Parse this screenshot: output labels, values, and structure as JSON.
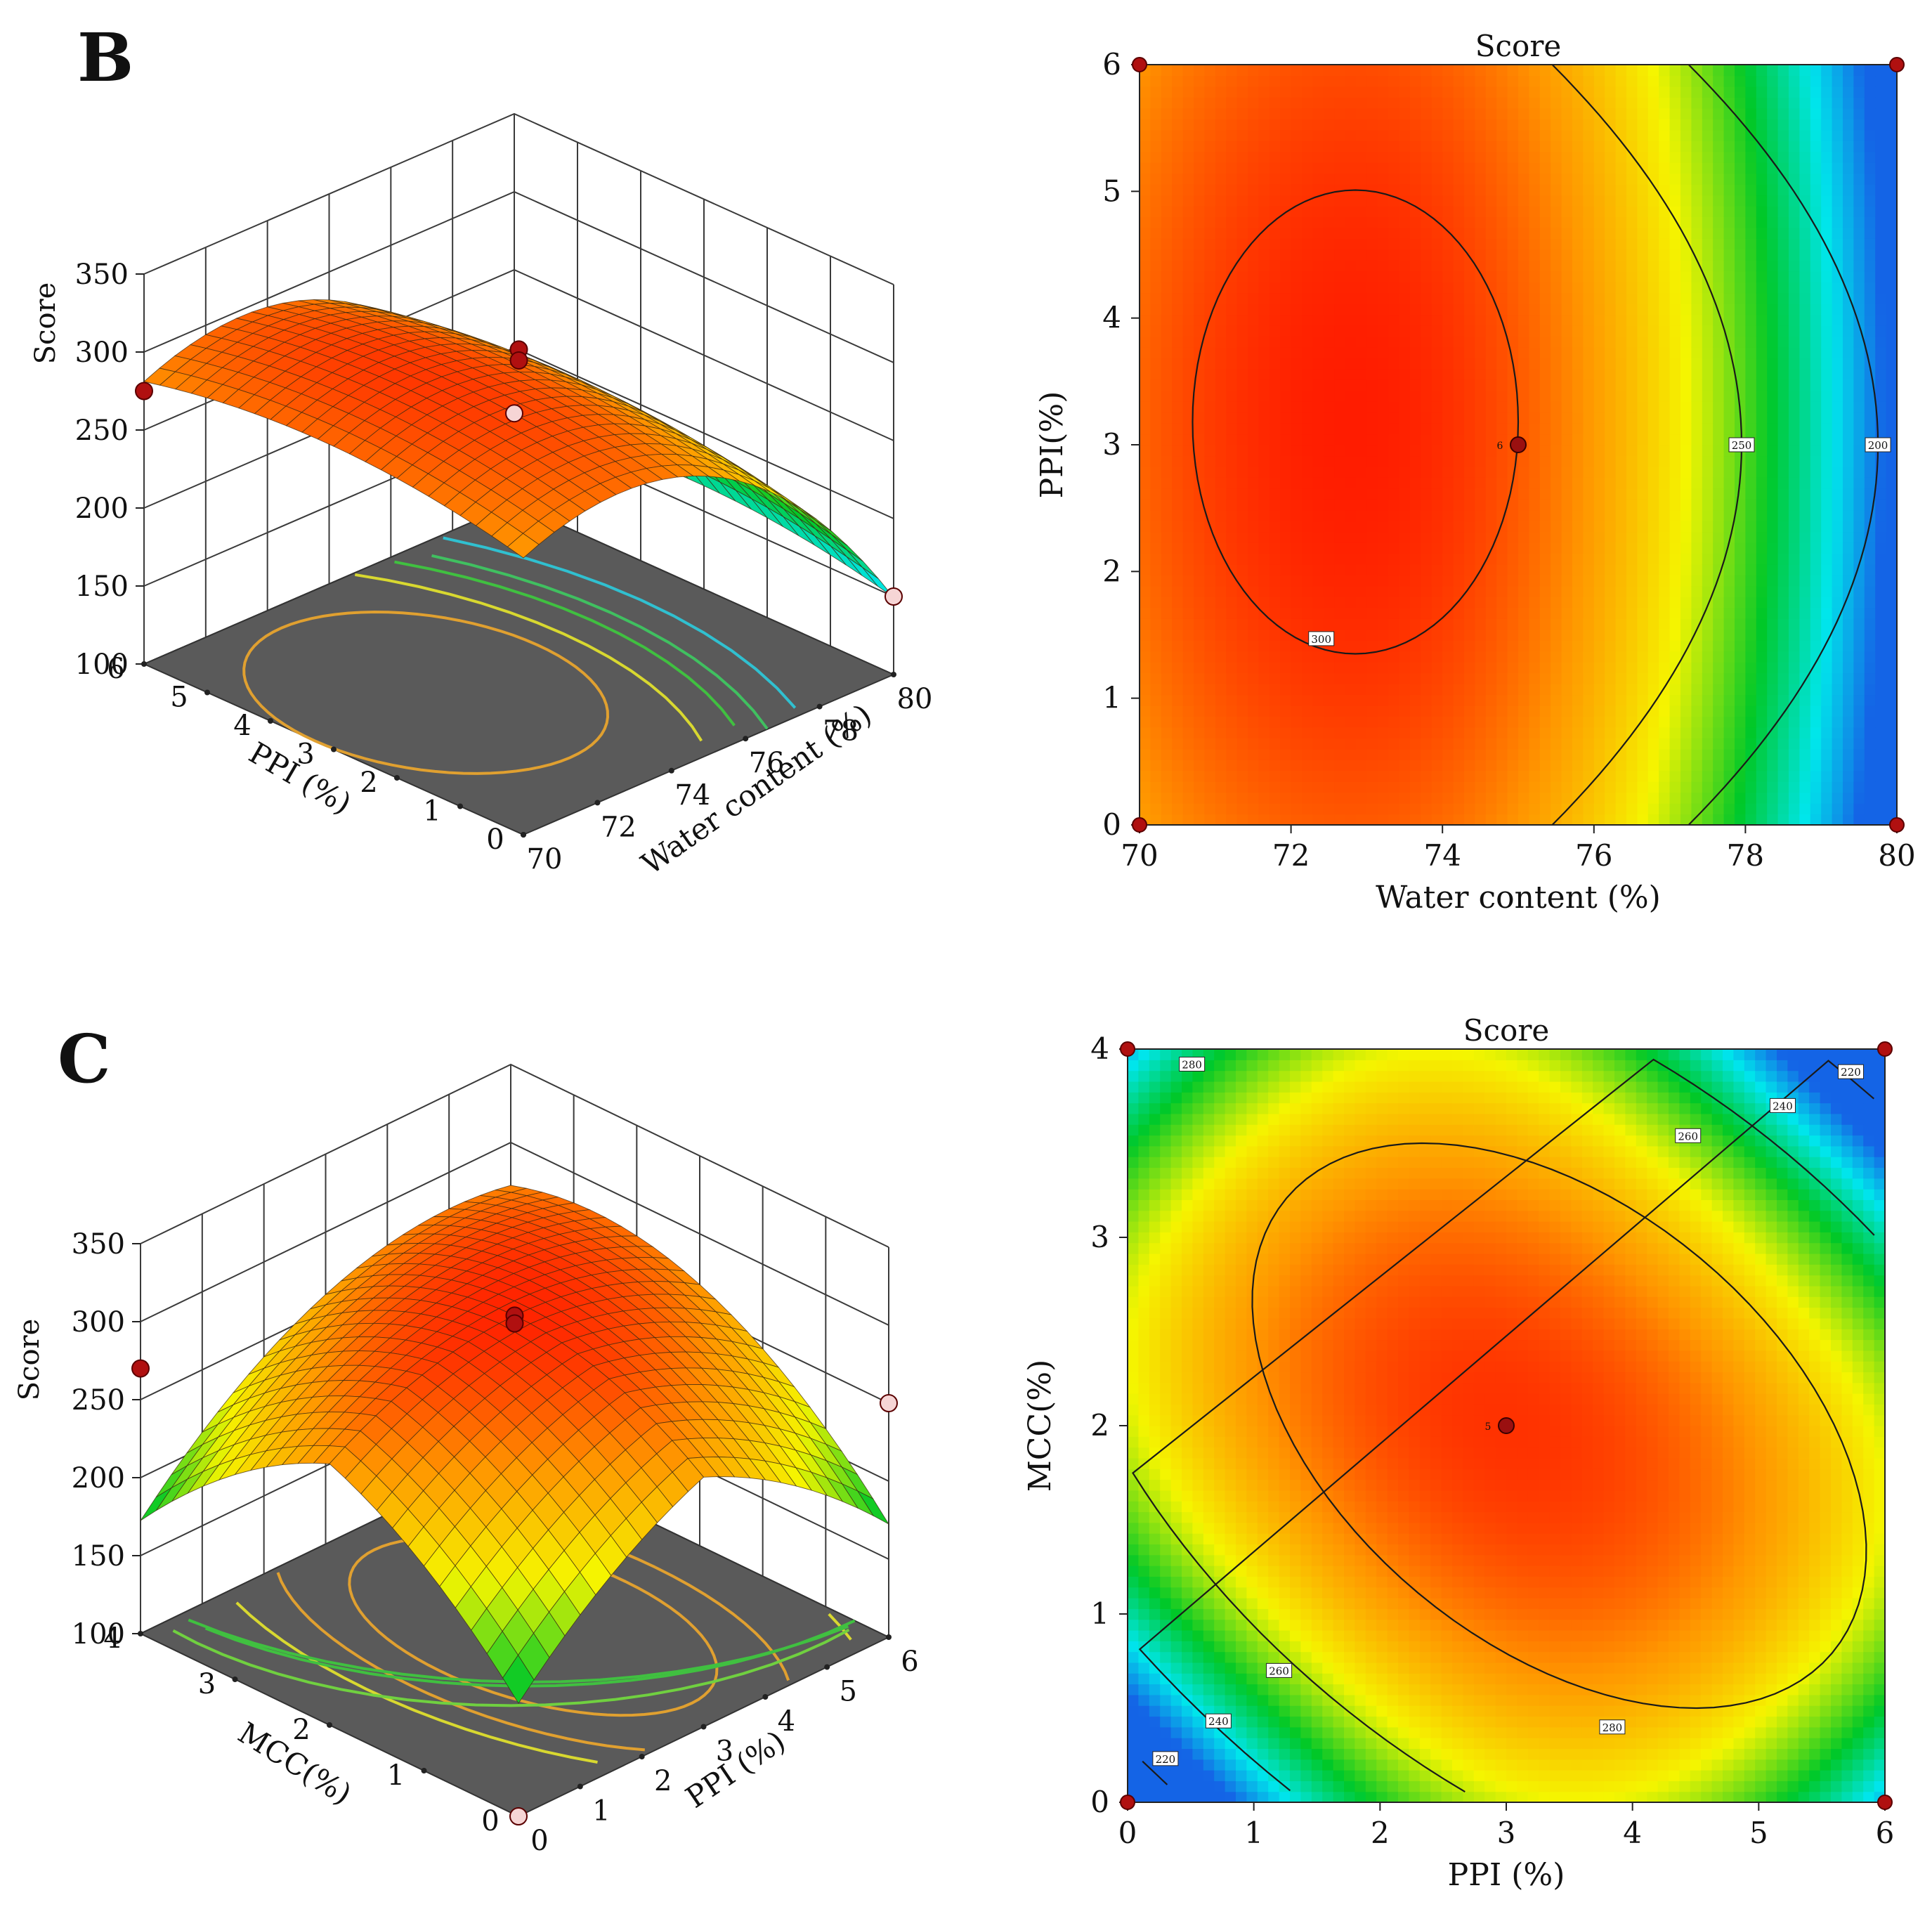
{
  "panels": [
    {
      "letter": "B",
      "surface": {
        "zlabel": "Score",
        "zticks": [
          "350",
          "300",
          "250",
          "200",
          "150",
          "100"
        ],
        "left_axis": {
          "label": "PPI (%)",
          "ticks": [
            "6",
            "5",
            "4",
            "3",
            "2",
            "1",
            "0"
          ]
        },
        "right_axis": {
          "label": "Water content (%)",
          "ticks": [
            "70",
            "72",
            "74",
            "76",
            "78",
            "80"
          ]
        },
        "colors": {
          "floor": "#595959",
          "grid": "#444444"
        }
      },
      "contour": {
        "title": "Score",
        "xlabel": "Water content (%)",
        "ylabel": "PPI(%)",
        "xticks": [
          "70",
          "72",
          "74",
          "76",
          "78",
          "80"
        ],
        "yticks": [
          "0",
          "1",
          "2",
          "3",
          "4",
          "5",
          "6"
        ],
        "contour_labels": [
          "300",
          "250",
          "200"
        ],
        "center_marker": "6"
      }
    },
    {
      "letter": "C",
      "surface": {
        "zlabel": "Score",
        "zticks": [
          "350",
          "300",
          "250",
          "200",
          "150",
          "100"
        ],
        "left_axis": {
          "label": "MCC(%)",
          "ticks": [
            "4",
            "3",
            "2",
            "1",
            "0"
          ]
        },
        "right_axis": {
          "label": "PPI (%)",
          "ticks": [
            "0",
            "1",
            "2",
            "3",
            "4",
            "5",
            "6"
          ]
        },
        "colors": {
          "floor": "#595959",
          "grid": "#444444"
        }
      },
      "contour": {
        "title": "Score",
        "xlabel": "PPI (%)",
        "ylabel": "MCC(%)",
        "xticks": [
          "0",
          "1",
          "2",
          "3",
          "4",
          "5",
          "6"
        ],
        "yticks": [
          "0",
          "1",
          "2",
          "3",
          "4"
        ],
        "contour_labels": [
          "280",
          "260",
          "240",
          "220",
          "260",
          "240",
          "220",
          "280"
        ],
        "center_marker": "5"
      }
    }
  ],
  "chart_data": [
    {
      "type": "surface",
      "panel": "B",
      "title": "",
      "x": {
        "label": "Water content (%)",
        "range": [
          70,
          80
        ]
      },
      "y": {
        "label": "PPI (%)",
        "range": [
          0,
          6
        ]
      },
      "z": {
        "label": "Score",
        "range": [
          100,
          350
        ]
      },
      "design_points": [
        {
          "water": 75,
          "ppi": 3,
          "score": 305
        },
        {
          "water": 70,
          "ppi": 0,
          "score": 275
        },
        {
          "water": 75,
          "ppi": 0,
          "score": 158
        },
        {
          "water": 80,
          "ppi": 6,
          "score": 150
        }
      ]
    },
    {
      "type": "heatmap",
      "panel": "B",
      "title": "Score",
      "xlabel": "Water content (%)",
      "ylabel": "PPI(%)",
      "xlim": [
        70,
        80
      ],
      "ylim": [
        0,
        6
      ],
      "contours": [
        {
          "level": 300,
          "shape": "ellipse",
          "center": [
            72.8,
            3.2
          ],
          "semi_axes": [
            2.1,
            1.8
          ]
        },
        {
          "level": 250,
          "shape": "arc",
          "x_at_ppi_3": 77.9
        },
        {
          "level": 200,
          "shape": "arc",
          "x_at_ppi_3": 79.7
        }
      ],
      "center_point": {
        "x": 75,
        "y": 3,
        "replicates": 6
      },
      "corner_points": [
        [
          70,
          0
        ],
        [
          70,
          6
        ],
        [
          80,
          0
        ],
        [
          80,
          6
        ]
      ]
    },
    {
      "type": "surface",
      "panel": "C",
      "title": "",
      "x": {
        "label": "PPI (%)",
        "range": [
          0,
          6
        ]
      },
      "y": {
        "label": "MCC(%)",
        "range": [
          0,
          4
        ]
      },
      "z": {
        "label": "Score",
        "range": [
          100,
          350
        ]
      },
      "design_points": [
        {
          "ppi": 3,
          "mcc": 2,
          "score": 305
        },
        {
          "ppi": 0,
          "mcc": 4,
          "score": 270
        },
        {
          "ppi": 6,
          "mcc": 0,
          "score": 250
        },
        {
          "ppi": 0,
          "mcc": 0,
          "score": 100
        }
      ]
    },
    {
      "type": "heatmap",
      "panel": "C",
      "title": "Score",
      "xlabel": "PPI (%)",
      "ylabel": "MCC(%)",
      "xlim": [
        0,
        6
      ],
      "ylim": [
        0,
        4
      ],
      "contours": [
        {
          "level": 280,
          "shape": "ellipse",
          "center": [
            3.5,
            2.0
          ],
          "tilt_deg": -35
        },
        {
          "level": 260,
          "shape": "curve"
        },
        {
          "level": 240,
          "shape": "curve"
        },
        {
          "level": 220,
          "shape": "curve"
        }
      ],
      "center_point": {
        "x": 3,
        "y": 2,
        "replicates": 5
      },
      "corner_points": [
        [
          0,
          0
        ],
        [
          0,
          4
        ],
        [
          6,
          0
        ],
        [
          6,
          4
        ]
      ]
    }
  ]
}
